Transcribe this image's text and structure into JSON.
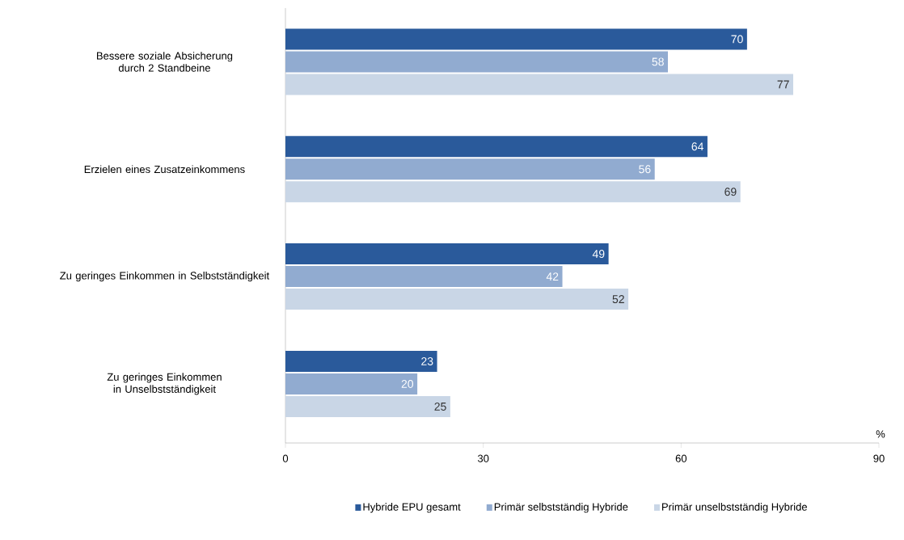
{
  "chart_data": {
    "type": "bar",
    "orientation": "horizontal",
    "xlabel": "%",
    "categories": [
      "Bessere soziale Absicherung durch 2 Standbeine",
      "Erzielen eines Zusatzeinkommens",
      "Zu geringes Einkommen in Selbstständigkeit",
      "Zu geringes Einkommen in Unselbstständigkeit"
    ],
    "series": [
      {
        "name": "Hybride EPU gesamt",
        "color": "#2a5a9b",
        "values": [
          70,
          64,
          49,
          23
        ]
      },
      {
        "name": "Primär selbstständig Hybride",
        "color": "#91abd0",
        "values": [
          58,
          56,
          42,
          20
        ]
      },
      {
        "name": "Primär unselbstständig Hybride",
        "color": "#c9d6e6",
        "values": [
          77,
          69,
          52,
          25
        ]
      }
    ],
    "xlim": [
      0,
      90
    ],
    "xticks": [
      0,
      30,
      60,
      90
    ],
    "data_labels": true,
    "legend": "bottom"
  }
}
